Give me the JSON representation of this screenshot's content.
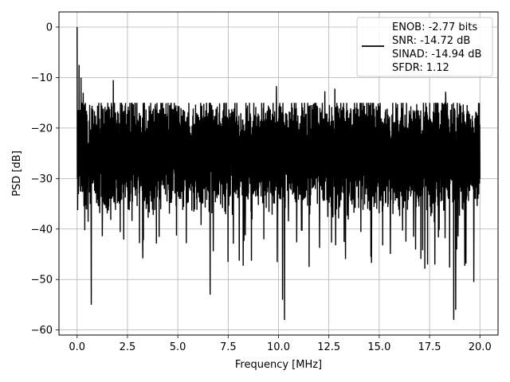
{
  "chart_data": {
    "type": "line",
    "xlabel": "Frequency [MHz]",
    "ylabel": "PSD [dB]",
    "xlim": [
      -0.9,
      20.9
    ],
    "ylim": [
      -61,
      3
    ],
    "xticks": [
      0.0,
      2.5,
      5.0,
      7.5,
      10.0,
      12.5,
      15.0,
      17.5,
      20.0
    ],
    "xtick_labels": [
      "0.0",
      "2.5",
      "5.0",
      "7.5",
      "10.0",
      "12.5",
      "15.0",
      "17.5",
      "20.0"
    ],
    "yticks": [
      0,
      -10,
      -20,
      -30,
      -40,
      -50,
      -60
    ],
    "ytick_labels": [
      "0",
      "−10",
      "−20",
      "−30",
      "−40",
      "−50",
      "−60"
    ],
    "grid": true,
    "legend_position": "top-right",
    "line_color": "#000000",
    "series": [
      {
        "name": "ENOB: -2.77 bits",
        "legend_lines": [
          "ENOB: -2.77 bits",
          "SNR: -14.72 dB",
          "SINAD: -14.94 dB",
          "SFDR: 1.12"
        ],
        "x_range": [
          0,
          20
        ],
        "n_points": 2048,
        "noise_floor_db": -25,
        "mean_upper_db": -19,
        "mean_lower_db": -33,
        "peaks": [
          {
            "x": 0.0,
            "y": 0.0
          },
          {
            "x": 0.1,
            "y": -7.5
          },
          {
            "x": 0.2,
            "y": -10.0
          },
          {
            "x": 0.3,
            "y": -13.0
          },
          {
            "x": 1.8,
            "y": -10.5
          },
          {
            "x": 9.9,
            "y": -11.7
          },
          {
            "x": 12.3,
            "y": -12.7
          },
          {
            "x": 12.8,
            "y": -12.2
          },
          {
            "x": 18.3,
            "y": -12.8
          }
        ],
        "troughs": [
          {
            "x": 0.7,
            "y": -55.0
          },
          {
            "x": 1.8,
            "y": -51.5
          },
          {
            "x": 6.6,
            "y": -53.0
          },
          {
            "x": 10.2,
            "y": -54.0
          },
          {
            "x": 10.3,
            "y": -58.0
          },
          {
            "x": 12.3,
            "y": -53.5
          },
          {
            "x": 18.7,
            "y": -58.0
          },
          {
            "x": 18.8,
            "y": -56.0
          },
          {
            "x": 19.7,
            "y": -50.5
          }
        ]
      }
    ]
  }
}
